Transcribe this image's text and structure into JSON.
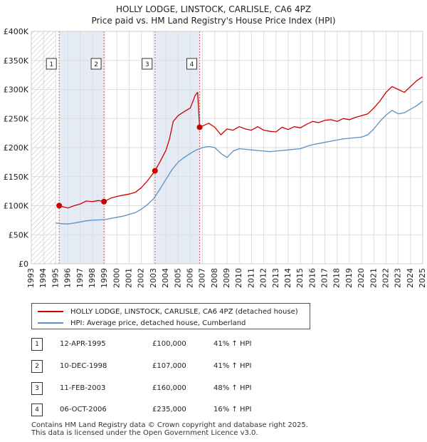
{
  "chart_data": {
    "type": "line",
    "title": "HOLLY LODGE, LINSTOCK, CARLISLE, CA6 4PZ",
    "subtitle": "Price paid vs. HM Land Registry's House Price Index (HPI)",
    "xlim": [
      1993,
      2025
    ],
    "ylim": [
      0,
      400000
    ],
    "x_ticks": [
      "1993",
      "1994",
      "1995",
      "1996",
      "1997",
      "1998",
      "1999",
      "2000",
      "2001",
      "2002",
      "2003",
      "2004",
      "2005",
      "2006",
      "2007",
      "2008",
      "2009",
      "2010",
      "2011",
      "2012",
      "2013",
      "2014",
      "2015",
      "2016",
      "2017",
      "2018",
      "2019",
      "2020",
      "2021",
      "2022",
      "2023",
      "2024",
      "2025"
    ],
    "y_ticks": [
      {
        "value": 0,
        "label": "£0"
      },
      {
        "value": 50000,
        "label": "£50K"
      },
      {
        "value": 100000,
        "label": "£100K"
      },
      {
        "value": 150000,
        "label": "£150K"
      },
      {
        "value": 200000,
        "label": "£200K"
      },
      {
        "value": 250000,
        "label": "£250K"
      },
      {
        "value": 300000,
        "label": "£300K"
      },
      {
        "value": 350000,
        "label": "£350K"
      },
      {
        "value": 400000,
        "label": "£400K"
      }
    ],
    "hatched_before": 1995.0,
    "shaded_spans": [
      [
        1995.28,
        1998.94
      ],
      [
        2003.11,
        2006.76
      ]
    ],
    "series": [
      {
        "name": "HOLLY LODGE, LINSTOCK, CARLISLE, CA6 4PZ (detached house)",
        "color": "#cc0000",
        "x": [
          1995.28,
          1995.6,
          1996.0,
          1996.5,
          1997.0,
          1997.5,
          1998.0,
          1998.5,
          1998.94,
          1999.5,
          2000.0,
          2000.5,
          2001.0,
          2001.5,
          2002.0,
          2002.5,
          2003.11,
          2003.5,
          2004.0,
          2004.3,
          2004.6,
          2005.0,
          2005.5,
          2006.0,
          2006.4,
          2006.6,
          2006.76,
          2007.0,
          2007.5,
          2008.0,
          2008.5,
          2009.0,
          2009.5,
          2010.0,
          2010.5,
          2011.0,
          2011.5,
          2012.0,
          2012.5,
          2013.0,
          2013.5,
          2014.0,
          2014.5,
          2015.0,
          2015.5,
          2016.0,
          2016.5,
          2017.0,
          2017.5,
          2018.0,
          2018.5,
          2019.0,
          2019.5,
          2020.0,
          2020.5,
          2021.0,
          2021.5,
          2022.0,
          2022.5,
          2023.0,
          2023.5,
          2024.0,
          2024.5,
          2025.0
        ],
        "values": [
          100000,
          98000,
          96000,
          100000,
          103000,
          108000,
          107000,
          109000,
          107000,
          113000,
          116000,
          118000,
          120000,
          123000,
          131000,
          143000,
          160000,
          175000,
          195000,
          215000,
          245000,
          255000,
          262000,
          268000,
          290000,
          295000,
          235000,
          237000,
          242000,
          235000,
          222000,
          232000,
          230000,
          236000,
          232000,
          230000,
          236000,
          230000,
          228000,
          227000,
          235000,
          231000,
          236000,
          234000,
          240000,
          245000,
          243000,
          247000,
          248000,
          245000,
          250000,
          248000,
          252000,
          255000,
          258000,
          268000,
          280000,
          295000,
          305000,
          300000,
          295000,
          305000,
          315000,
          322000
        ]
      },
      {
        "name": "HPI: Average price, detached house, Cumberland",
        "color": "#5b8fc9",
        "x": [
          1995.0,
          1995.5,
          1996.0,
          1996.5,
          1997.0,
          1997.5,
          1998.0,
          1998.5,
          1999.0,
          1999.5,
          2000.0,
          2000.5,
          2001.0,
          2001.5,
          2002.0,
          2002.5,
          2003.0,
          2003.5,
          2004.0,
          2004.5,
          2005.0,
          2005.5,
          2006.0,
          2006.5,
          2007.0,
          2007.5,
          2008.0,
          2008.5,
          2009.0,
          2009.5,
          2010.0,
          2010.5,
          2011.0,
          2011.5,
          2012.0,
          2012.5,
          2013.0,
          2013.5,
          2014.0,
          2014.5,
          2015.0,
          2015.5,
          2016.0,
          2016.5,
          2017.0,
          2017.5,
          2018.0,
          2018.5,
          2019.0,
          2019.5,
          2020.0,
          2020.5,
          2021.0,
          2021.5,
          2022.0,
          2022.5,
          2023.0,
          2023.5,
          2024.0,
          2024.5,
          2025.0
        ],
        "values": [
          70000,
          69000,
          68500,
          70000,
          72000,
          74000,
          75000,
          75500,
          76000,
          78000,
          80000,
          82000,
          85000,
          88000,
          94000,
          102000,
          112000,
          128000,
          145000,
          162000,
          175000,
          183000,
          190000,
          196000,
          200000,
          202000,
          200000,
          190000,
          183000,
          194000,
          198000,
          197000,
          196000,
          195000,
          194000,
          193000,
          194000,
          195000,
          196000,
          197000,
          198000,
          202000,
          205000,
          207000,
          209000,
          211000,
          213000,
          215000,
          216000,
          217000,
          218000,
          222000,
          232000,
          245000,
          256000,
          264000,
          258000,
          260000,
          266000,
          272000,
          280000
        ]
      }
    ],
    "sales": [
      {
        "num": "1",
        "x": 1995.28,
        "value": 100000
      },
      {
        "num": "2",
        "x": 1998.94,
        "value": 107000
      },
      {
        "num": "3",
        "x": 2003.11,
        "value": 160000
      },
      {
        "num": "4",
        "x": 2006.76,
        "value": 235000
      }
    ]
  },
  "legend": {
    "property_label": "HOLLY LODGE, LINSTOCK, CARLISLE, CA6 4PZ (detached house)",
    "hpi_label": "HPI: Average price, detached house, Cumberland",
    "property_color": "#cc0000",
    "hpi_color": "#5b8fc9"
  },
  "sales_table": [
    {
      "num": "1",
      "date": "12-APR-1995",
      "price": "£100,000",
      "hpi": "41% ↑ HPI"
    },
    {
      "num": "2",
      "date": "10-DEC-1998",
      "price": "£107,000",
      "hpi": "41% ↑ HPI"
    },
    {
      "num": "3",
      "date": "11-FEB-2003",
      "price": "£160,000",
      "hpi": "48% ↑ HPI"
    },
    {
      "num": "4",
      "date": "06-OCT-2006",
      "price": "£235,000",
      "hpi": "16% ↑ HPI"
    }
  ],
  "footer": {
    "line1": "Contains HM Land Registry data © Crown copyright and database right 2025.",
    "line2": "This data is licensed under the Open Government Licence v3.0."
  }
}
